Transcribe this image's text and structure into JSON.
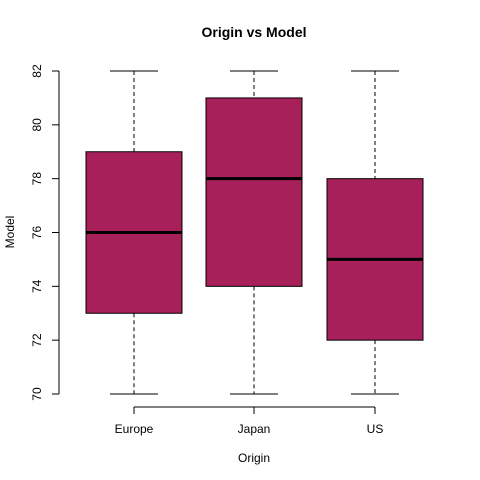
{
  "chart_data": {
    "type": "box",
    "title": "Origin vs Model",
    "xlabel": "Origin",
    "ylabel": "Model",
    "ylim": [
      70,
      82
    ],
    "yticks": [
      "70",
      "72",
      "74",
      "76",
      "78",
      "80",
      "82"
    ],
    "categories": [
      "Europe",
      "Japan",
      "US"
    ],
    "boxes": [
      {
        "category": "Europe",
        "min": 70,
        "q1": 73,
        "median": 76,
        "q3": 79,
        "max": 82
      },
      {
        "category": "Japan",
        "min": 70,
        "q1": 74,
        "median": 78,
        "q3": 81,
        "max": 82
      },
      {
        "category": "US",
        "min": 70,
        "q1": 72,
        "median": 75,
        "q3": 78,
        "max": 82
      }
    ],
    "box_color": "#A8205A",
    "grid": false,
    "legend": "none"
  }
}
